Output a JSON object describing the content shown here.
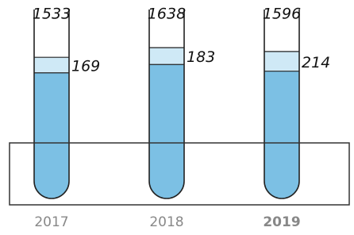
{
  "chart_data": {
    "type": "tube",
    "categories": [
      "2017",
      "2018",
      "2019"
    ],
    "values": [
      1533,
      1638,
      1596
    ],
    "top_values": [
      169,
      183,
      214
    ],
    "highlight": 2,
    "color": "#7cc0e4",
    "top_color": "#cfe9f6"
  }
}
